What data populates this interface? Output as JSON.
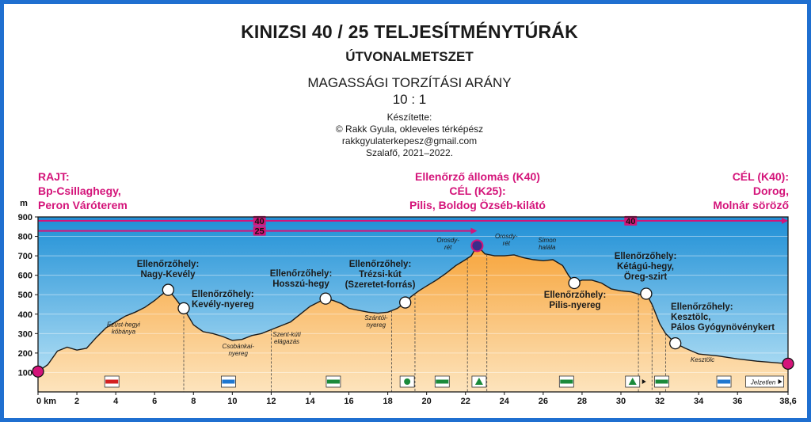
{
  "header": {
    "title": "KINIZSI 40 / 25 TELJESÍTMÉNYTÚRÁK",
    "subtitle": "ÚTVONALMETSZET",
    "ratio_label": "MAGASSÁGI TORZÍTÁSI ARÁNY",
    "ratio_value": "10 : 1",
    "credits": [
      "Készítette:",
      "© Rakk Gyula, okleveles térképész",
      "rakkgyulaterkepesz@gmail.com",
      "Szalafő, 2021–2022."
    ]
  },
  "colors": {
    "frame": "#1f6fd0",
    "sky_top": "#1e8fd6",
    "sky_bottom": "#bfe6f7",
    "ground_top": "#f7a53c",
    "ground_bottom": "#fde4bd",
    "route": "#d4147a",
    "text": "#1a1a1a"
  },
  "chart_data": {
    "type": "area",
    "xlabel": "km",
    "ylabel": "m",
    "xlim": [
      0,
      38.6
    ],
    "ylim": [
      0,
      900
    ],
    "grid": true,
    "x_ticks": [
      "0 km",
      "2",
      "4",
      "6",
      "8",
      "10",
      "12",
      "14",
      "16",
      "18",
      "20",
      "22",
      "24",
      "26",
      "28",
      "30",
      "32",
      "34",
      "36",
      "38,6"
    ],
    "y_ticks": [
      "100",
      "200",
      "300",
      "400",
      "500",
      "600",
      "700",
      "800",
      "900"
    ],
    "x": [
      0,
      0.5,
      1,
      1.5,
      2,
      2.5,
      3,
      3.5,
      4,
      4.5,
      5,
      5.5,
      6,
      6.3,
      6.7,
      7,
      7.3,
      7.5,
      8,
      8.5,
      9,
      9.5,
      10,
      10.5,
      11,
      11.5,
      12,
      12.5,
      13,
      13.5,
      14,
      14.5,
      14.8,
      15.2,
      15.6,
      16,
      16.5,
      17,
      17.5,
      18,
      18.5,
      18.9,
      19.2,
      19.6,
      20,
      20.5,
      21,
      21.5,
      22,
      22.3,
      22.6,
      23,
      23.5,
      24,
      24.5,
      25,
      25.5,
      26,
      26.5,
      27,
      27.3,
      27.6,
      28,
      28.5,
      29,
      29.5,
      30,
      30.5,
      31,
      31.3,
      31.6,
      32,
      32.3,
      32.8,
      33.3,
      34,
      35,
      36,
      37,
      38,
      38.6
    ],
    "values": [
      105,
      140,
      210,
      230,
      215,
      225,
      280,
      330,
      360,
      390,
      410,
      435,
      470,
      495,
      525,
      490,
      450,
      430,
      345,
      310,
      300,
      285,
      265,
      270,
      290,
      300,
      320,
      340,
      360,
      400,
      440,
      465,
      480,
      470,
      455,
      430,
      420,
      410,
      405,
      410,
      430,
      460,
      490,
      520,
      545,
      575,
      610,
      650,
      680,
      700,
      752,
      710,
      700,
      700,
      705,
      690,
      680,
      675,
      680,
      650,
      600,
      560,
      575,
      575,
      560,
      530,
      520,
      515,
      500,
      505,
      450,
      350,
      300,
      250,
      225,
      195,
      185,
      170,
      158,
      150,
      145
    ],
    "distance_markers": [
      {
        "label": "40",
        "from_km": 0,
        "to_km": 38.6,
        "elev": 880
      },
      {
        "label": "25",
        "from_km": 0,
        "to_km": 22.6,
        "elev": 828
      }
    ],
    "route_points": [
      {
        "km": 0,
        "elev": 105,
        "kind": "endpoint"
      },
      {
        "km": 22.6,
        "elev": 752,
        "kind": "checkpoint-main"
      },
      {
        "km": 38.6,
        "elev": 145,
        "kind": "endpoint"
      },
      {
        "km": 6.7,
        "elev": 525,
        "kind": "checkpoint"
      },
      {
        "km": 7.5,
        "elev": 430,
        "kind": "checkpoint"
      },
      {
        "km": 14.8,
        "elev": 480,
        "kind": "checkpoint"
      },
      {
        "km": 18.9,
        "elev": 460,
        "kind": "checkpoint"
      },
      {
        "km": 27.6,
        "elev": 560,
        "kind": "checkpoint"
      },
      {
        "km": 31.3,
        "elev": 505,
        "kind": "checkpoint"
      },
      {
        "km": 32.8,
        "elev": 250,
        "kind": "checkpoint"
      }
    ],
    "vertical_guides_km": [
      7.5,
      12,
      18.2,
      19.4,
      22.1,
      23.1,
      30.9,
      31.6,
      32.3
    ],
    "start_label": [
      "RAJT:",
      "Bp-Csillaghegy,",
      "Peron Váróterem"
    ],
    "middle_label": [
      "Ellenőrző állomás (K40)",
      "CÉL (K25):",
      "Pilis, Boldog Özséb-kilátó"
    ],
    "finish_label": [
      "CÉL (K40):",
      "Dorog,",
      "Molnár söröző"
    ],
    "checkpoints": [
      {
        "lines": [
          "Ellenőrzőhely:",
          "Nagy-Kevély"
        ]
      },
      {
        "lines": [
          "Ellenőrzőhely:",
          "Kevély-nyereg"
        ]
      },
      {
        "lines": [
          "Ellenőrzőhely:",
          "Hosszú-hegy"
        ]
      },
      {
        "lines": [
          "Ellenőrzőhely:",
          "Trézsi-kút",
          "(Szeretet-forrás)"
        ]
      },
      {
        "lines": [
          "Ellenőrzőhely:",
          "Pilis-nyereg"
        ]
      },
      {
        "lines": [
          "Ellenőrzőhely:",
          "Kétágú-hegy,",
          "Öreg-szirt"
        ]
      },
      {
        "lines": [
          "Ellenőrzőhely:",
          "Kesztölc,",
          "Pálos Gyógynövénykert"
        ]
      }
    ],
    "annotations": [
      {
        "lines": [
          "Ezüst-hegyi",
          "kőbánya"
        ],
        "km": 4.4,
        "elev": 335
      },
      {
        "lines": [
          "Csobánkai-",
          "nyereg"
        ],
        "km": 10.3,
        "elev": 225
      },
      {
        "lines": [
          "Szent-kúti",
          "elágazás"
        ],
        "km": 12.8,
        "elev": 285
      },
      {
        "lines": [
          "Szántói-",
          "nyereg"
        ],
        "km": 17.4,
        "elev": 370
      },
      {
        "lines": [
          "Orosdy-",
          "rét"
        ],
        "km": 21.1,
        "elev": 770
      },
      {
        "lines": [
          "Orosdy-",
          "rét"
        ],
        "km": 24.1,
        "elev": 790
      },
      {
        "lines": [
          "Simon",
          "halála"
        ],
        "km": 26.2,
        "elev": 770
      },
      {
        "lines": [
          "Kesztölc"
        ],
        "km": 34.2,
        "elev": 155
      }
    ],
    "trail_markers": [
      {
        "km": 3.8,
        "type": "red-stripe"
      },
      {
        "km": 9.8,
        "type": "blue-stripe"
      },
      {
        "km": 15.2,
        "type": "green-stripe"
      },
      {
        "km": 19.0,
        "type": "green-circle"
      },
      {
        "km": 20.8,
        "type": "green-stripe"
      },
      {
        "km": 22.7,
        "type": "green-triangle"
      },
      {
        "km": 27.2,
        "type": "green-stripe"
      },
      {
        "km": 30.6,
        "type": "green-triangle"
      },
      {
        "km": 32.1,
        "type": "green-stripe"
      },
      {
        "km": 35.3,
        "type": "blue-stripe"
      },
      {
        "km": 37.4,
        "type": "unmarked"
      }
    ],
    "unmarked_label": "Jelzetlen"
  }
}
